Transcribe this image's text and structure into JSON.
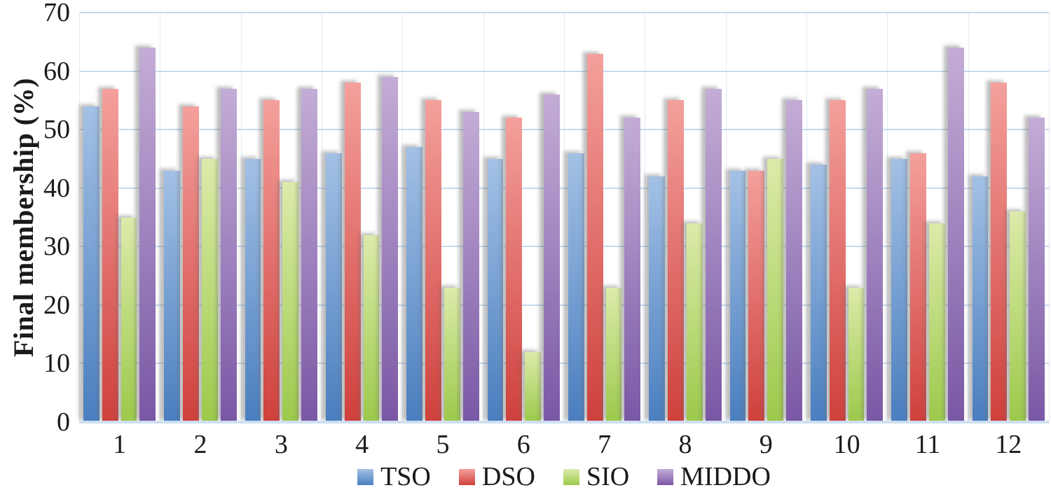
{
  "chart_data": {
    "type": "bar",
    "title": "",
    "xlabel": "",
    "ylabel": "Final membership (%)",
    "ylim": [
      0,
      70
    ],
    "yticks": [
      0,
      10,
      20,
      30,
      40,
      50,
      60,
      70
    ],
    "grid": true,
    "gridline_color": "#c5daf0",
    "legend_position": "bottom",
    "categories": [
      "1",
      "2",
      "3",
      "4",
      "5",
      "6",
      "7",
      "8",
      "9",
      "10",
      "11",
      "12"
    ],
    "series": [
      {
        "name": "TSO",
        "color_top": "#a3c1e5",
        "color_bottom": "#4a7ebf",
        "values": [
          54,
          43,
          45,
          46,
          47,
          45,
          46,
          42,
          43,
          44,
          45,
          42
        ]
      },
      {
        "name": "DSO",
        "color_top": "#f4a09c",
        "color_bottom": "#cf403c",
        "values": [
          57,
          54,
          55,
          58,
          55,
          52,
          63,
          55,
          43,
          55,
          46,
          58
        ]
      },
      {
        "name": "SIO",
        "color_top": "#dcebaa",
        "color_bottom": "#9cc94b",
        "values": [
          35,
          45,
          41,
          32,
          23,
          12,
          23,
          34,
          45,
          23,
          34,
          36
        ]
      },
      {
        "name": "MIDDO",
        "color_top": "#c3add6",
        "color_bottom": "#7a57a5",
        "values": [
          64,
          57,
          57,
          59,
          53,
          56,
          52,
          57,
          55,
          57,
          64,
          52
        ]
      }
    ]
  }
}
